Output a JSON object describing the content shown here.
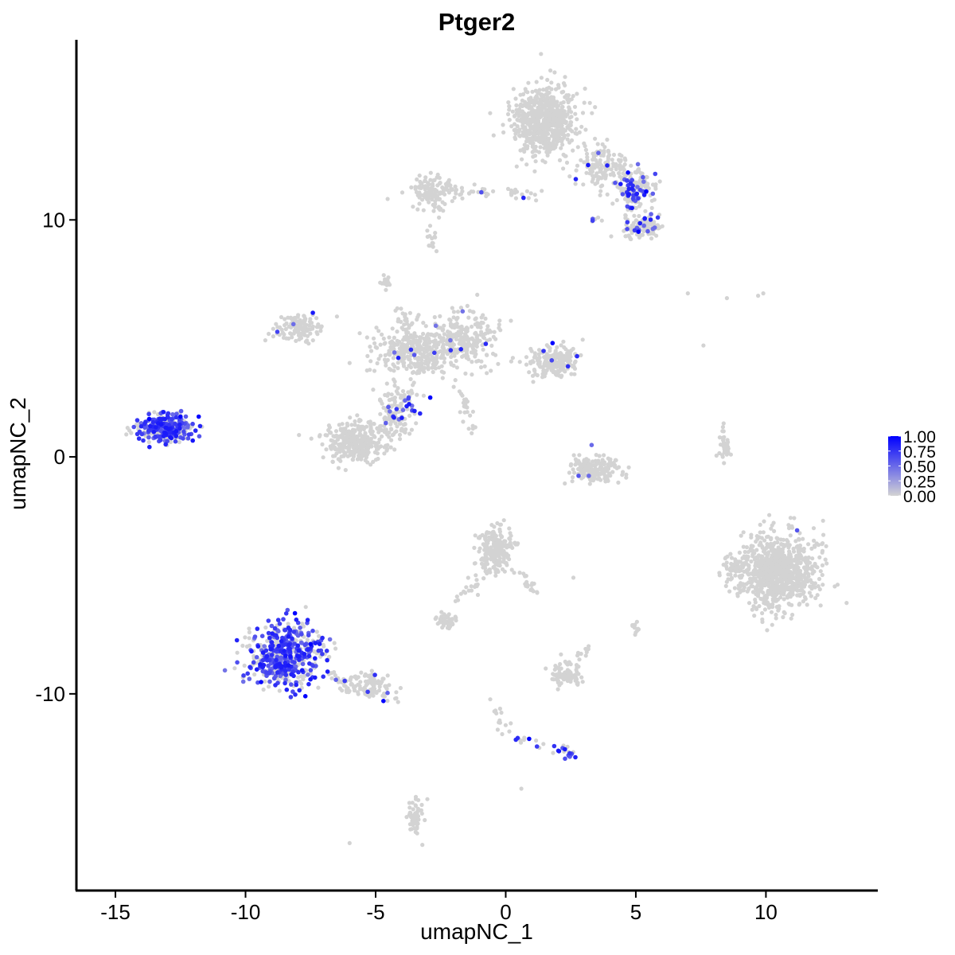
{
  "chart_data": {
    "type": "scatter",
    "title": "Ptger2",
    "xlabel": "umapNC_1",
    "ylabel": "umapNC_2",
    "xlim": [
      -16.5,
      14.3
    ],
    "ylim": [
      -18.3,
      17.6
    ],
    "x_ticks": [
      -15,
      -10,
      -5,
      0,
      5,
      10
    ],
    "x_tick_labels": [
      "-15",
      "-10",
      "-5",
      "0",
      "5",
      "10"
    ],
    "y_ticks": [
      -10,
      0,
      10
    ],
    "y_tick_labels": [
      "-10",
      "0",
      "10"
    ],
    "grid": false,
    "legend": {
      "placement": "right",
      "type": "colorbar",
      "ticks": [
        0.0,
        0.25,
        0.5,
        0.75,
        1.0
      ],
      "tick_labels": [
        "0.00",
        "0.25",
        "0.50",
        "0.75",
        "1.00"
      ]
    },
    "color_low": "#d3d3d3",
    "color_high": "#0000ff",
    "clusters": [
      {
        "cx": 1.5,
        "cy": 14.2,
        "sx": 1.0,
        "sy": 1.2,
        "n": 650,
        "expr_frac": 0.0
      },
      {
        "cx": 3.7,
        "cy": 12.2,
        "sx": 0.9,
        "sy": 0.7,
        "n": 140,
        "expr_frac": 0.05
      },
      {
        "cx": 5.0,
        "cy": 11.3,
        "sx": 0.6,
        "sy": 0.6,
        "n": 160,
        "expr_frac": 0.25
      },
      {
        "cx": 5.3,
        "cy": 9.7,
        "sx": 0.6,
        "sy": 0.4,
        "n": 110,
        "expr_frac": 0.2
      },
      {
        "cx": -2.8,
        "cy": 11.2,
        "sx": 0.7,
        "sy": 0.6,
        "n": 130,
        "expr_frac": 0.02
      },
      {
        "cx": -8.0,
        "cy": 5.5,
        "sx": 0.8,
        "sy": 0.5,
        "n": 120,
        "expr_frac": 0.03
      },
      {
        "cx": -3.5,
        "cy": 4.5,
        "sx": 1.3,
        "sy": 0.9,
        "n": 320,
        "expr_frac": 0.03
      },
      {
        "cx": -1.5,
        "cy": 5.0,
        "sx": 1.0,
        "sy": 1.0,
        "n": 230,
        "expr_frac": 0.03
      },
      {
        "cx": 1.8,
        "cy": 4.0,
        "sx": 0.8,
        "sy": 0.5,
        "n": 200,
        "expr_frac": 0.02
      },
      {
        "cx": -5.8,
        "cy": 0.6,
        "sx": 1.0,
        "sy": 0.7,
        "n": 320,
        "expr_frac": 0.0
      },
      {
        "cx": -4.2,
        "cy": 1.8,
        "sx": 0.6,
        "sy": 1.0,
        "n": 140,
        "expr_frac": 0.12
      },
      {
        "cx": -13.0,
        "cy": 1.2,
        "sx": 0.9,
        "sy": 0.45,
        "n": 320,
        "expr_frac": 0.55
      },
      {
        "cx": 3.4,
        "cy": -0.5,
        "sx": 0.8,
        "sy": 0.45,
        "n": 170,
        "expr_frac": 0.02
      },
      {
        "cx": 10.5,
        "cy": -4.8,
        "sx": 1.2,
        "sy": 1.3,
        "n": 900,
        "expr_frac": 0.0
      },
      {
        "cx": -0.4,
        "cy": -3.9,
        "sx": 0.6,
        "sy": 0.8,
        "n": 230,
        "expr_frac": 0.0
      },
      {
        "cx": -8.5,
        "cy": -8.4,
        "sx": 1.2,
        "sy": 1.1,
        "n": 560,
        "expr_frac": 0.55
      },
      {
        "cx": -5.3,
        "cy": -9.6,
        "sx": 0.9,
        "sy": 0.4,
        "n": 90,
        "expr_frac": 0.03
      },
      {
        "cx": -2.3,
        "cy": -6.9,
        "sx": 0.3,
        "sy": 0.25,
        "n": 50,
        "expr_frac": 0.0
      },
      {
        "cx": 2.3,
        "cy": -9.2,
        "sx": 0.5,
        "sy": 0.45,
        "n": 80,
        "expr_frac": 0.02
      },
      {
        "cx": -3.5,
        "cy": -15.2,
        "sx": 0.25,
        "sy": 0.6,
        "n": 60,
        "expr_frac": 0.0
      },
      {
        "cx": 2.3,
        "cy": -12.5,
        "sx": 0.3,
        "sy": 0.2,
        "n": 18,
        "expr_frac": 0.6
      },
      {
        "cx": 8.4,
        "cy": 0.5,
        "sx": 0.2,
        "sy": 0.5,
        "n": 40,
        "expr_frac": 0.0
      },
      {
        "cx": 8.8,
        "cy": -4.8,
        "sx": 0.4,
        "sy": 0.6,
        "n": 50,
        "expr_frac": 0.0
      },
      {
        "cx": 5.0,
        "cy": -7.2,
        "sx": 0.15,
        "sy": 0.2,
        "n": 12,
        "expr_frac": 0.0
      },
      {
        "cx": 3.5,
        "cy": 10.0,
        "sx": 0.2,
        "sy": 0.1,
        "n": 8,
        "expr_frac": 0.7
      },
      {
        "cx": -2.8,
        "cy": 9.0,
        "sx": 0.15,
        "sy": 0.6,
        "n": 14,
        "expr_frac": 0.0
      },
      {
        "cx": -4.6,
        "cy": 7.3,
        "sx": 0.2,
        "sy": 0.25,
        "n": 16,
        "expr_frac": 0.0
      }
    ],
    "connectors": [
      {
        "x0": -2.0,
        "y0": 11.3,
        "x1": 1.5,
        "y1": 11.0,
        "n": 40,
        "expr_frac": 0.05
      },
      {
        "x0": -1.8,
        "y0": 3.0,
        "x1": -1.2,
        "y1": 1.0,
        "n": 25,
        "expr_frac": 0.0
      },
      {
        "x0": -3.2,
        "y0": 3.5,
        "x1": -4.2,
        "y1": 6.5,
        "n": 30,
        "expr_frac": 0.0
      },
      {
        "x0": -0.7,
        "y0": -4.8,
        "x1": -1.8,
        "y1": -6.0,
        "n": 20,
        "expr_frac": 0.0
      },
      {
        "x0": 0.4,
        "y0": -4.5,
        "x1": 1.2,
        "y1": -5.8,
        "n": 20,
        "expr_frac": 0.0
      },
      {
        "x0": -6.8,
        "y0": -9.2,
        "x1": -4.0,
        "y1": -10.3,
        "n": 35,
        "expr_frac": 0.08
      },
      {
        "x0": -0.5,
        "y0": -10.2,
        "x1": 0.0,
        "y1": -11.6,
        "n": 15,
        "expr_frac": 0.0
      },
      {
        "x0": 0.0,
        "y0": -11.7,
        "x1": 1.5,
        "y1": -12.2,
        "n": 10,
        "expr_frac": 0.3
      },
      {
        "x0": 3.3,
        "y0": -8.0,
        "x1": 2.6,
        "y1": -8.6,
        "n": 10,
        "expr_frac": 0.0
      },
      {
        "x0": 4.5,
        "y0": 12.0,
        "x1": 4.8,
        "y1": 9.0,
        "n": 20,
        "expr_frac": 0.15
      }
    ],
    "stray_points": [
      {
        "x": 7.0,
        "y": 6.9,
        "v": 0.0
      },
      {
        "x": 8.5,
        "y": 6.7,
        "v": 0.0
      },
      {
        "x": 9.7,
        "y": 6.8,
        "v": 0.0
      },
      {
        "x": 9.9,
        "y": 6.9,
        "v": 0.0
      },
      {
        "x": 7.6,
        "y": 4.7,
        "v": 0.0
      },
      {
        "x": -6.0,
        "y": -16.3,
        "v": 0.0
      },
      {
        "x": 0.6,
        "y": -14.0,
        "v": 0.0
      },
      {
        "x": 2.6,
        "y": -5.1,
        "v": 0.0
      },
      {
        "x": 1.8,
        "y": 4.8,
        "v": 1.0
      },
      {
        "x": -2.9,
        "y": 2.5,
        "v": 1.0
      },
      {
        "x": 0.9,
        "y": -11.9,
        "v": 1.0
      },
      {
        "x": 11.2,
        "y": -3.1,
        "v": 0.6
      },
      {
        "x": 2.8,
        "y": -0.8,
        "v": 0.6
      },
      {
        "x": 3.3,
        "y": 0.5,
        "v": 0.5
      },
      {
        "x": 5.1,
        "y": 9.5,
        "v": 1.0
      },
      {
        "x": 4.7,
        "y": 12.0,
        "v": 1.0
      },
      {
        "x": 5.4,
        "y": 11.2,
        "v": 1.0
      },
      {
        "x": -13.7,
        "y": 1.6,
        "v": 1.0
      },
      {
        "x": -12.5,
        "y": 1.7,
        "v": 1.0
      },
      {
        "x": -11.8,
        "y": 1.7,
        "v": 1.0
      },
      {
        "x": -8.1,
        "y": -6.6,
        "v": 1.0
      },
      {
        "x": -7.5,
        "y": -7.9,
        "v": 1.0
      },
      {
        "x": -9.4,
        "y": -9.5,
        "v": 1.0
      },
      {
        "x": -7.7,
        "y": -10.1,
        "v": 1.0
      },
      {
        "x": -4.7,
        "y": -10.3,
        "v": 1.0
      }
    ]
  }
}
